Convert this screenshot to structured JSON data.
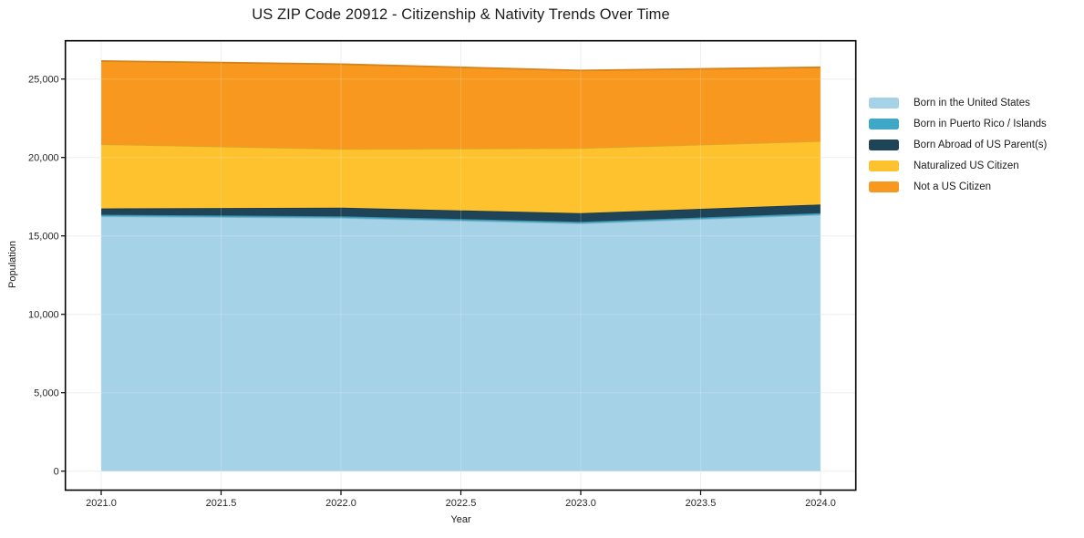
{
  "chart_data": {
    "type": "area",
    "stacked": true,
    "title": "US ZIP Code 20912 - Citizenship & Nativity Trends Over Time",
    "xlabel": "Year",
    "ylabel": "Population",
    "x": [
      2021,
      2022,
      2023,
      2024
    ],
    "series": [
      {
        "name": "Born in the United States",
        "color": "#a6d2e7",
        "values": [
          16250,
          16150,
          15800,
          16350
        ]
      },
      {
        "name": "Born in Puerto Rico / Islands",
        "color": "#3fa8c6",
        "values": [
          100,
          100,
          100,
          100
        ]
      },
      {
        "name": "Born Abroad of US Parent(s)",
        "color": "#1f4458",
        "values": [
          400,
          550,
          550,
          550
        ]
      },
      {
        "name": "Naturalized US Citizen",
        "color": "#fdc22d",
        "values": [
          4100,
          3750,
          4150,
          4050
        ]
      },
      {
        "name": "Not a US Citizen",
        "color": "#f8981f",
        "values": [
          5300,
          5400,
          4950,
          4700
        ]
      }
    ],
    "x_ticks": {
      "values": [
        2021.0,
        2021.5,
        2022.0,
        2022.5,
        2023.0,
        2023.5,
        2024.0
      ],
      "labels": [
        "2021.0",
        "2021.5",
        "2022.0",
        "2022.5",
        "2023.0",
        "2023.5",
        "2024.0"
      ]
    },
    "y_ticks": {
      "values": [
        0,
        5000,
        10000,
        15000,
        20000,
        25000
      ],
      "labels": [
        "0",
        "5,000",
        "10,000",
        "15,000",
        "20,000",
        "25,000"
      ]
    },
    "xlim": [
      2020.85,
      2024.15
    ],
    "ylim": [
      -1200,
      27400
    ],
    "grid": true,
    "legend_position": "right-outside",
    "colors": {
      "grid": "#ebebeb",
      "spine": "#000000",
      "text": "#262626"
    }
  }
}
